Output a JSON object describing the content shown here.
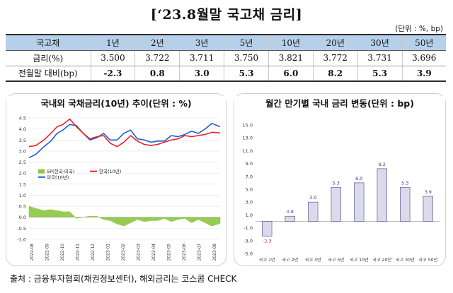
{
  "header": {
    "title": "[‘23.8월말 국고채 금리]",
    "unit": "(단위 : %, bp)"
  },
  "rates_table": {
    "columns": [
      "국고채",
      "1년",
      "2년",
      "3년",
      "5년",
      "10년",
      "20년",
      "30년",
      "50년"
    ],
    "rows": [
      {
        "label": "금리(%)",
        "values": [
          "3.500",
          "3.722",
          "3.711",
          "3.750",
          "3.821",
          "3.772",
          "3.731",
          "3.696"
        ]
      },
      {
        "label": "전월말 대비(bp)",
        "values": [
          "-2.3",
          "0.8",
          "3.0",
          "5.3",
          "6.0",
          "8.2",
          "5.3",
          "3.9"
        ]
      }
    ]
  },
  "chart_data": [
    {
      "type": "line",
      "title": "국내외 국채금리(10년) 추이(단위 : %)",
      "x_ticks": [
        "2022-08",
        "2022-09",
        "2022-10",
        "2022-11",
        "2022-12",
        "2023-01",
        "2023-02",
        "2023-03",
        "2023-04",
        "2023-05",
        "2023-06",
        "2023-07",
        "2023-08"
      ],
      "y_ticks": [
        "4.5",
        "4.0",
        "3.5",
        "3.0",
        "2.5",
        "2.0",
        "1.5",
        "1.0",
        "0.5",
        "0.0",
        "-0.5",
        "-1.0"
      ],
      "ylim": [
        -1.0,
        4.5
      ],
      "legend": [
        "SP(한국-미국)",
        "한국(10년)",
        "미국(10년)"
      ],
      "colors": {
        "korea": "#e8232a",
        "us": "#1f5ed6",
        "spread": "#8cc641"
      },
      "x_range": [
        "2022-08-01",
        "2023-08-31"
      ],
      "series": [
        {
          "name": "한국(10년)",
          "type": "line",
          "x": [
            "2022-08-01",
            "2022-08-15",
            "2022-09-01",
            "2022-09-15",
            "2022-09-28",
            "2022-10-10",
            "2022-10-24",
            "2022-11-07",
            "2022-11-21",
            "2022-12-05",
            "2022-12-19",
            "2023-01-02",
            "2023-01-16",
            "2023-01-30",
            "2023-02-13",
            "2023-02-27",
            "2023-03-13",
            "2023-03-27",
            "2023-04-10",
            "2023-04-24",
            "2023-05-08",
            "2023-05-22",
            "2023-06-05",
            "2023-06-19",
            "2023-07-03",
            "2023-07-17",
            "2023-07-31",
            "2023-08-14",
            "2023-08-31"
          ],
          "values": [
            3.2,
            3.25,
            3.5,
            3.8,
            4.1,
            4.2,
            4.45,
            4.1,
            3.8,
            3.55,
            3.65,
            3.7,
            3.35,
            3.2,
            3.4,
            3.7,
            3.45,
            3.3,
            3.25,
            3.3,
            3.4,
            3.5,
            3.55,
            3.7,
            3.65,
            3.7,
            3.75,
            3.85,
            3.82
          ]
        },
        {
          "name": "미국(10년)",
          "type": "line",
          "x": [
            "2022-08-01",
            "2022-08-15",
            "2022-09-01",
            "2022-09-15",
            "2022-09-28",
            "2022-10-10",
            "2022-10-24",
            "2022-11-07",
            "2022-11-21",
            "2022-12-05",
            "2022-12-19",
            "2023-01-02",
            "2023-01-16",
            "2023-01-30",
            "2023-02-13",
            "2023-02-27",
            "2023-03-13",
            "2023-03-27",
            "2023-04-10",
            "2023-04-24",
            "2023-05-08",
            "2023-05-22",
            "2023-06-05",
            "2023-06-19",
            "2023-07-03",
            "2023-07-17",
            "2023-07-31",
            "2023-08-14",
            "2023-08-31"
          ],
          "values": [
            2.7,
            2.85,
            3.2,
            3.45,
            3.8,
            3.95,
            4.2,
            4.15,
            3.8,
            3.5,
            3.6,
            3.8,
            3.5,
            3.5,
            3.8,
            3.95,
            3.55,
            3.5,
            3.4,
            3.45,
            3.45,
            3.7,
            3.65,
            3.75,
            3.9,
            3.8,
            4.0,
            4.25,
            4.1
          ]
        },
        {
          "name": "SP(한국-미국)",
          "type": "area",
          "x": [
            "2022-08-01",
            "2022-08-15",
            "2022-09-01",
            "2022-09-15",
            "2022-09-28",
            "2022-10-10",
            "2022-10-24",
            "2022-11-07",
            "2022-11-21",
            "2022-12-05",
            "2022-12-19",
            "2023-01-02",
            "2023-01-16",
            "2023-01-30",
            "2023-02-13",
            "2023-02-27",
            "2023-03-13",
            "2023-03-27",
            "2023-04-10",
            "2023-04-24",
            "2023-05-08",
            "2023-05-22",
            "2023-06-05",
            "2023-06-19",
            "2023-07-03",
            "2023-07-17",
            "2023-07-31",
            "2023-08-14",
            "2023-08-31"
          ],
          "values": [
            0.5,
            0.4,
            0.3,
            0.35,
            0.3,
            0.25,
            0.25,
            -0.05,
            0.0,
            0.05,
            0.05,
            -0.1,
            -0.15,
            -0.3,
            -0.4,
            -0.25,
            -0.1,
            -0.2,
            -0.15,
            -0.15,
            -0.05,
            -0.2,
            -0.1,
            -0.05,
            -0.25,
            -0.1,
            -0.25,
            -0.4,
            -0.28
          ]
        }
      ]
    },
    {
      "type": "bar",
      "title": "월간 만기별 국내 금리 변동(단위 : bp)",
      "categories": [
        "국고 1년",
        "국고 2년",
        "국고 3년",
        "국고 5년",
        "국고 10년",
        "국고 20년",
        "국고 30년",
        "국고 50년"
      ],
      "values": [
        -2.3,
        0.8,
        3.0,
        5.3,
        6.0,
        8.2,
        5.3,
        3.9
      ],
      "data_labels": [
        "-2.3",
        "0.8",
        "3.0",
        "5.3",
        "6.0",
        "8.2",
        "5.3",
        "3.9"
      ],
      "y_ticks": [
        "15.0",
        "13.0",
        "11.0",
        "9.0",
        "7.0",
        "5.0",
        "3.0",
        "1.0",
        "-1.0",
        "-3.0",
        "-5.0"
      ],
      "ylim": [
        -5,
        15
      ],
      "colors": {
        "bar_fill": "#dcd9ec",
        "bar_stroke": "#5a5890",
        "label": "#3d3a7a",
        "label_negative": "#d93030"
      }
    }
  ],
  "footer": {
    "source": "출처 : 금융투자협회(채권정보센터), 해외금리는 코스콤 CHECK"
  }
}
